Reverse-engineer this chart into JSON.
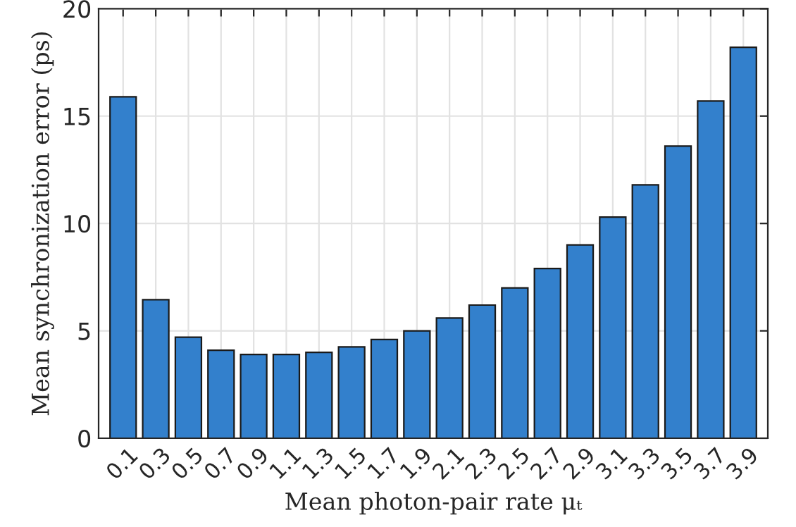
{
  "chart_data": {
    "type": "bar",
    "xlabel": "Mean photon-pair rate μₜ",
    "ylabel": "Mean synchronization error (ps)",
    "categories": [
      "0.1",
      "0.3",
      "0.5",
      "0.7",
      "0.9",
      "1.1",
      "1.3",
      "1.5",
      "1.7",
      "1.9",
      "2.1",
      "2.3",
      "2.5",
      "2.7",
      "2.9",
      "3.1",
      "3.3",
      "3.5",
      "3.7",
      "3.9"
    ],
    "values": [
      15.9,
      6.45,
      4.7,
      4.1,
      3.9,
      3.9,
      4.0,
      4.25,
      4.6,
      5.0,
      5.6,
      6.2,
      7.0,
      7.9,
      9.0,
      10.3,
      11.8,
      13.6,
      15.7,
      18.2
    ],
    "color": "#3380cc",
    "ylim": [
      0,
      20
    ],
    "yticks": [
      0,
      5,
      10,
      15,
      20
    ],
    "grid": true
  }
}
